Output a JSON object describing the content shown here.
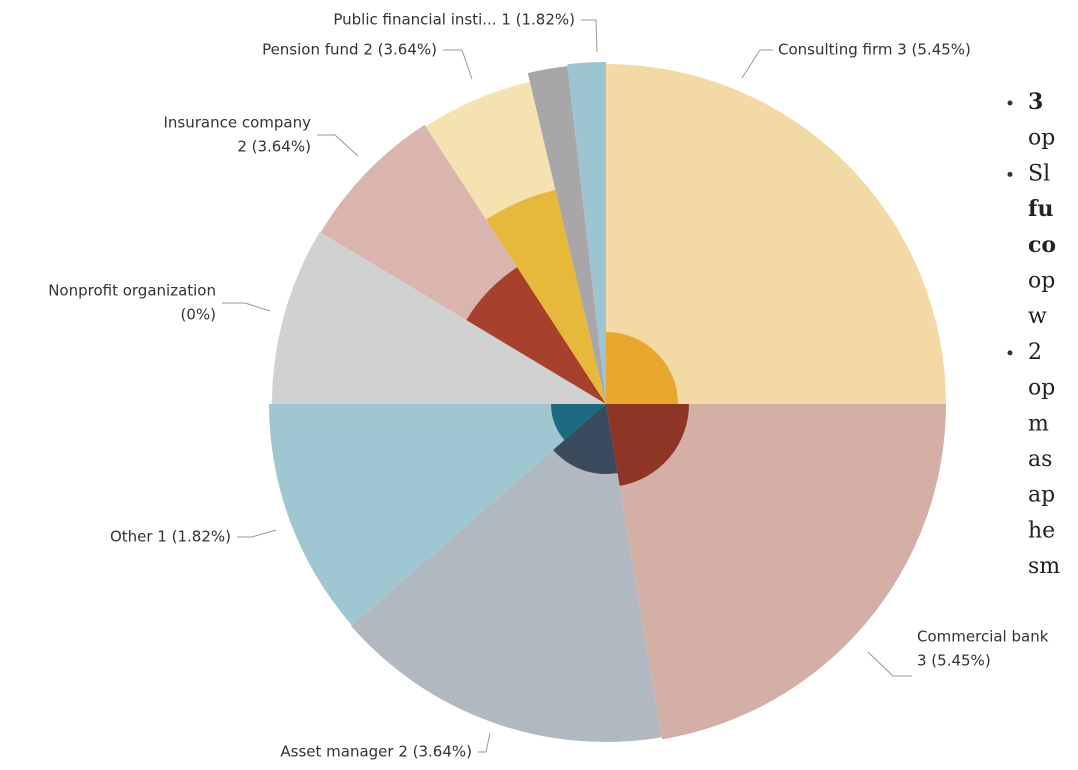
{
  "chart_data": {
    "type": "rose",
    "labels": [
      [
        "Consulting firm 3 (5.45%)"
      ],
      [
        "Commercial bank",
        "3 (5.45%)"
      ],
      [
        "Asset manager 2 (3.64%)"
      ],
      [
        "Other 1 (1.82%)"
      ],
      [
        "Nonprofit organization",
        "(0%)"
      ],
      [
        "Insurance company",
        "2 (3.64%)"
      ],
      [
        "Pension fund 2 (3.64%)"
      ],
      null,
      [
        "Public financial insti... 1 (1.82%)"
      ]
    ],
    "values": [
      90,
      80.5,
      58.5,
      41,
      31,
      26,
      19.7,
      6.8,
      6.5
    ],
    "radii": [
      340,
      340,
      338,
      337,
      334,
      333,
      331,
      340,
      342
    ],
    "colors": [
      "#f3d9a4",
      "#d4afa6",
      "#b1b8bf",
      "#9fc7d1",
      "#d0d2d2",
      "#dab5ae",
      "#f4e2b1",
      "#a8a6a8",
      "#9dc5d1"
    ],
    "inner_radii": [
      72,
      83,
      70,
      55,
      0,
      163,
      220,
      null,
      null
    ],
    "inner_colors": [
      "#e8a82e",
      "#8e3526",
      "#3c4a5e",
      "#1c6b80",
      null,
      "#a8402e",
      "#e6b93a",
      null,
      null
    ]
  },
  "side_text": [
    {
      "text": "3",
      "bold": true,
      "bullet": true
    },
    {
      "text": "op",
      "bold": false,
      "bullet": false
    },
    {
      "text": "Sl",
      "bold": false,
      "bullet": true
    },
    {
      "text": "fu",
      "bold": true,
      "bullet": false
    },
    {
      "text": "co",
      "bold": true,
      "bullet": false
    },
    {
      "text": "op",
      "bold": false,
      "bullet": false
    },
    {
      "text": "w",
      "bold": false,
      "bullet": false
    },
    {
      "text": "2",
      "bold": false,
      "bullet": true
    },
    {
      "text": "op",
      "bold": false,
      "bullet": false
    },
    {
      "text": "m",
      "bold": false,
      "bullet": false
    },
    {
      "text": "as",
      "bold": false,
      "bullet": false
    },
    {
      "text": "ap",
      "bold": false,
      "bullet": false
    },
    {
      "text": "he",
      "bold": false,
      "bullet": false
    },
    {
      "text": "sm",
      "bold": false,
      "bullet": false
    }
  ]
}
